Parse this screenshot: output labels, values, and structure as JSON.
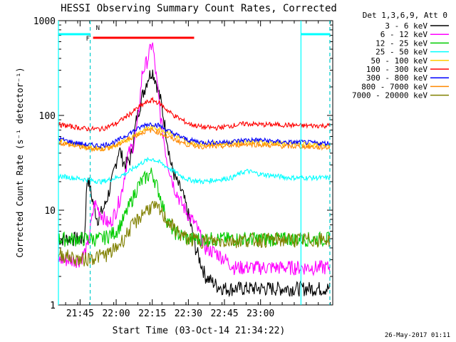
{
  "chart_data": {
    "type": "line",
    "title": "HESSI Observing Summary Count Rates, Corrected",
    "xlabel": "Start Time (03-Oct-14 21:34:22)",
    "ylabel": "Corrected Count Rate (s⁻¹ detector⁻¹)",
    "yscale": "log",
    "ylim": [
      1,
      1000
    ],
    "xlim_minutes": [
      21.6,
      23.5
    ],
    "x_ticks": [
      {
        "label": "21:45",
        "h": 21.75
      },
      {
        "label": "22:00",
        "h": 22.0
      },
      {
        "label": "22:15",
        "h": 22.25
      },
      {
        "label": "22:30",
        "h": 22.5
      },
      {
        "label": "22:45",
        "h": 22.75
      },
      {
        "label": "23:00",
        "h": 23.0
      }
    ],
    "y_ticks": [
      {
        "label": "1",
        "v": 1
      },
      {
        "label": "10",
        "v": 10
      },
      {
        "label": "100",
        "v": 100
      },
      {
        "label": "1000",
        "v": 1000
      }
    ],
    "legend_header": "Det 1,3,6,9, Att 0",
    "series": [
      {
        "name": "3 - 6 keV",
        "color": "#000000",
        "x": [
          21.6,
          21.72,
          21.78,
          21.8,
          21.83,
          21.87,
          21.92,
          21.97,
          22.02,
          22.06,
          22.1,
          22.14,
          22.18,
          22.22,
          22.25,
          22.28,
          22.31,
          22.35,
          22.38,
          22.42,
          22.46,
          22.5,
          22.55,
          22.62,
          22.7,
          22.76,
          22.82,
          22.9,
          23.0,
          23.1,
          23.2,
          23.3,
          23.4,
          23.48
        ],
        "y": [
          5,
          5,
          5,
          24,
          14,
          8,
          11,
          20,
          45,
          30,
          35,
          90,
          160,
          250,
          300,
          220,
          140,
          60,
          30,
          20,
          15,
          9,
          4,
          2,
          1.6,
          1.5,
          1.5,
          1.5,
          1.5,
          1.5,
          1.5,
          1.5,
          1.5,
          1.5
        ]
      },
      {
        "name": "6 - 12 keV",
        "color": "#ff00ff",
        "x": [
          21.6,
          21.75,
          21.8,
          21.85,
          21.9,
          21.95,
          22.0,
          22.04,
          22.08,
          22.12,
          22.15,
          22.18,
          22.22,
          22.25,
          22.28,
          22.31,
          22.35,
          22.4,
          22.45,
          22.5,
          22.55,
          22.62,
          22.7,
          22.76,
          22.82,
          22.9,
          23.0,
          23.1,
          23.2,
          23.3,
          23.4,
          23.48
        ],
        "y": [
          3,
          3,
          4,
          12,
          9,
          7,
          10,
          16,
          38,
          50,
          85,
          280,
          400,
          600,
          240,
          90,
          35,
          18,
          12,
          9,
          7,
          4,
          3.5,
          3,
          2.5,
          2.5,
          2.5,
          2.5,
          2.5,
          2.5,
          2.5,
          2.5
        ]
      },
      {
        "name": "12 - 25 keV",
        "color": "#00cc00",
        "x": [
          21.6,
          21.75,
          21.9,
          22.0,
          22.05,
          22.1,
          22.15,
          22.2,
          22.25,
          22.3,
          22.35,
          22.4,
          22.5,
          22.6,
          22.75,
          22.9,
          23.05,
          23.2,
          23.35,
          23.48
        ],
        "y": [
          5,
          5,
          5,
          6,
          8,
          12,
          18,
          22,
          25,
          15,
          8,
          6,
          5,
          5,
          5,
          5,
          5,
          5,
          5,
          5
        ]
      },
      {
        "name": "25 - 50 keV",
        "color": "#00ffff",
        "x": [
          21.6,
          21.7,
          21.8,
          21.9,
          22.0,
          22.08,
          22.15,
          22.2,
          22.25,
          22.3,
          22.38,
          22.45,
          22.5,
          22.6,
          22.7,
          22.8,
          22.85,
          22.9,
          22.95,
          23.0,
          23.1,
          23.2,
          23.3,
          23.4,
          23.48
        ],
        "y": [
          23,
          22,
          21,
          20,
          22,
          25,
          30,
          33,
          35,
          32,
          27,
          23,
          21,
          20,
          21,
          22,
          24,
          26,
          25,
          24,
          23,
          22,
          22,
          22,
          22
        ],
        "bars": [
          {
            "x": 21.55,
            "y": 720
          },
          {
            "x": 23.25,
            "y": 720
          }
        ]
      },
      {
        "name": "50 - 100 keV",
        "color": "#ffcc00",
        "x": [
          21.6,
          21.7,
          21.8,
          21.9,
          22.0,
          22.1,
          22.15,
          22.2,
          22.25,
          22.3,
          22.35,
          22.4,
          22.5,
          22.6,
          22.7,
          22.8,
          22.9,
          23.0,
          23.1,
          23.2,
          23.3,
          23.4,
          23.48
        ],
        "y": [
          55,
          50,
          46,
          45,
          48,
          58,
          65,
          72,
          75,
          72,
          68,
          62,
          52,
          50,
          50,
          51,
          53,
          52,
          51,
          50,
          50,
          49,
          49
        ]
      },
      {
        "name": "100 - 300 keV",
        "color": "#ff0000",
        "x": [
          21.6,
          21.7,
          21.8,
          21.9,
          22.0,
          22.1,
          22.15,
          22.2,
          22.25,
          22.3,
          22.35,
          22.4,
          22.5,
          22.6,
          22.7,
          22.8,
          22.9,
          23.0,
          23.1,
          23.2,
          23.3,
          23.4,
          23.48
        ],
        "y": [
          80,
          76,
          72,
          72,
          82,
          105,
          120,
          135,
          145,
          135,
          115,
          100,
          82,
          75,
          74,
          78,
          82,
          80,
          80,
          79,
          78,
          78,
          78
        ]
      },
      {
        "name": "300 - 800 keV",
        "color": "#0000ff",
        "x": [
          21.6,
          21.7,
          21.8,
          21.9,
          22.0,
          22.1,
          22.15,
          22.2,
          22.25,
          22.3,
          22.35,
          22.4,
          22.5,
          22.6,
          22.7,
          22.8,
          22.9,
          23.0,
          23.1,
          23.2,
          23.3,
          23.4,
          23.48
        ],
        "y": [
          57,
          52,
          49,
          48,
          53,
          66,
          72,
          80,
          82,
          78,
          70,
          64,
          55,
          52,
          52,
          53,
          55,
          55,
          53,
          52,
          52,
          51,
          51
        ]
      },
      {
        "name": "800 - 7000 keV",
        "color": "#ff8800",
        "x": [
          21.6,
          21.7,
          21.8,
          21.9,
          22.0,
          22.1,
          22.15,
          22.2,
          22.25,
          22.3,
          22.35,
          22.4,
          22.5,
          22.6,
          22.7,
          22.8,
          22.9,
          23.0,
          23.1,
          23.2,
          23.3,
          23.4,
          23.48
        ],
        "y": [
          52,
          48,
          45,
          44,
          48,
          58,
          63,
          68,
          70,
          66,
          60,
          56,
          49,
          47,
          47,
          48,
          50,
          49,
          48,
          47,
          47,
          46,
          46
        ]
      },
      {
        "name": "7000 - 20000 keV",
        "color": "#808000",
        "x": [
          21.6,
          21.75,
          21.85,
          21.95,
          22.0,
          22.05,
          22.1,
          22.15,
          22.2,
          22.25,
          22.3,
          22.35,
          22.4,
          22.45,
          22.5,
          22.6,
          22.7,
          22.8,
          22.9,
          23.0,
          23.1,
          23.2,
          23.3,
          23.4,
          23.48
        ],
        "y": [
          3.5,
          3,
          3.2,
          3.5,
          4,
          5,
          6.5,
          8,
          10,
          11,
          10,
          8,
          6.5,
          5.5,
          5,
          4.8,
          4.7,
          4.8,
          4.9,
          4.9,
          4.9,
          4.9,
          4.9,
          4.9,
          4.9
        ]
      }
    ],
    "annotations": {
      "flare_bar": {
        "label": "F",
        "color": "#ff0000",
        "x0": 21.84,
        "x1": 22.54,
        "y": 660
      },
      "night_label": {
        "label": "N",
        "color": "#00cccc",
        "x": 21.84
      },
      "night_bars": [
        {
          "x0": 21.6,
          "x1": 21.82,
          "y": 720
        },
        {
          "x0": 23.28,
          "x1": 23.48,
          "y": 720
        }
      ],
      "solid_verticals": [
        21.6,
        23.28
      ],
      "dashed_verticals": [
        21.82,
        23.48
      ]
    },
    "footer_timestamp": "26-May-2017 01:11"
  }
}
